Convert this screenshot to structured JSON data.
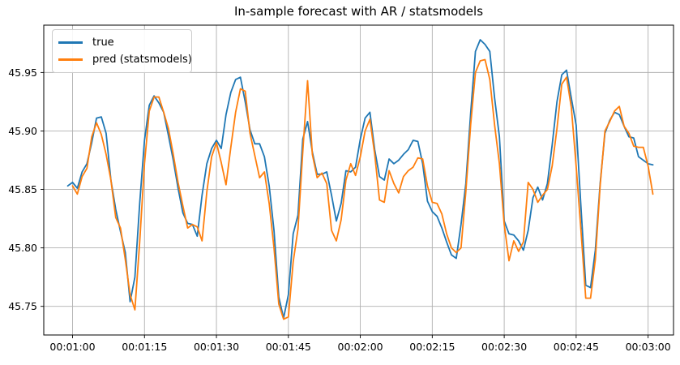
{
  "figure": {
    "title": "In-sample forecast with AR / statsmodels",
    "background_color": "#ffffff",
    "grid_color": "#b0b0b0",
    "spine_color": "#000000"
  },
  "legend": {
    "position": "upper left",
    "items": [
      {
        "label": "true",
        "color": "#1f77b4"
      },
      {
        "label": "pred (statsmodels)",
        "color": "#ff7f0e"
      }
    ]
  },
  "chart_data": {
    "type": "line",
    "title": "In-sample forecast with AR / statsmodels",
    "xlabel": "",
    "ylabel": "",
    "grid": true,
    "legend_position": "upper left",
    "x_axis": {
      "start_time": "00:00:59",
      "interval_seconds": 1,
      "n_points": 123,
      "tick_labels": [
        "00:01:00",
        "00:01:15",
        "00:01:30",
        "00:01:45",
        "00:02:00",
        "00:02:15",
        "00:02:30",
        "00:02:45",
        "00:03:00"
      ],
      "tick_seconds": [
        60,
        75,
        90,
        105,
        120,
        135,
        150,
        165,
        180
      ]
    },
    "y_axis": {
      "tick_labels": [
        "45.75",
        "45.80",
        "45.85",
        "45.90",
        "45.95"
      ],
      "tick_values": [
        45.75,
        45.8,
        45.85,
        45.9,
        45.95
      ],
      "ylim": [
        45.7255,
        45.9905
      ]
    },
    "series": [
      {
        "name": "true",
        "color": "#1f77b4",
        "values": [
          45.853,
          45.856,
          45.851,
          45.865,
          45.872,
          45.89,
          45.911,
          45.912,
          45.898,
          45.858,
          45.833,
          45.814,
          45.796,
          45.754,
          45.775,
          45.838,
          45.892,
          45.922,
          45.93,
          45.924,
          45.916,
          45.896,
          45.875,
          45.851,
          45.83,
          45.821,
          45.82,
          45.81,
          45.845,
          45.872,
          45.885,
          45.892,
          45.885,
          45.914,
          45.933,
          45.944,
          45.946,
          45.925,
          45.901,
          45.889,
          45.889,
          45.878,
          45.853,
          45.815,
          45.758,
          45.74,
          45.76,
          45.812,
          45.828,
          45.893,
          45.908,
          45.882,
          45.863,
          45.863,
          45.865,
          45.845,
          45.823,
          45.838,
          45.866,
          45.865,
          45.869,
          45.893,
          45.911,
          45.916,
          45.884,
          45.861,
          45.858,
          45.876,
          45.872,
          45.875,
          45.88,
          45.884,
          45.892,
          45.891,
          45.872,
          45.84,
          45.831,
          45.827,
          45.817,
          45.805,
          45.794,
          45.791,
          45.82,
          45.855,
          45.915,
          45.968,
          45.978,
          45.974,
          45.968,
          45.928,
          45.895,
          45.823,
          45.812,
          45.811,
          45.806,
          45.798,
          45.815,
          45.843,
          45.852,
          45.841,
          45.855,
          45.888,
          45.925,
          45.948,
          45.952,
          45.928,
          45.905,
          45.835,
          45.768,
          45.766,
          45.798,
          45.855,
          45.898,
          45.909,
          45.916,
          45.914,
          45.904,
          45.895,
          45.894,
          45.878,
          45.875,
          45.872,
          45.871
        ]
      },
      {
        "name": "pred (statsmodels)",
        "color": "#ff7f0e",
        "values": [
          null,
          45.853,
          45.846,
          45.861,
          45.868,
          45.895,
          45.907,
          45.897,
          45.88,
          45.858,
          45.826,
          45.817,
          45.79,
          45.76,
          45.747,
          45.805,
          45.872,
          45.917,
          45.929,
          45.929,
          45.916,
          45.902,
          45.88,
          45.856,
          45.836,
          45.817,
          45.82,
          45.818,
          45.806,
          45.848,
          45.878,
          45.89,
          45.873,
          45.854,
          45.886,
          45.916,
          45.936,
          45.934,
          45.898,
          45.879,
          45.86,
          45.865,
          45.838,
          45.8,
          45.752,
          45.739,
          45.741,
          45.788,
          45.816,
          45.882,
          45.943,
          45.88,
          45.86,
          45.864,
          45.855,
          45.815,
          45.806,
          45.824,
          45.858,
          45.872,
          45.862,
          45.878,
          45.9,
          45.91,
          45.88,
          45.841,
          45.839,
          45.866,
          45.855,
          45.847,
          45.861,
          45.866,
          45.869,
          45.877,
          45.876,
          45.853,
          45.839,
          45.838,
          45.829,
          45.812,
          45.8,
          45.796,
          45.8,
          45.848,
          45.905,
          45.95,
          45.96,
          45.961,
          45.944,
          45.905,
          45.872,
          45.82,
          45.789,
          45.806,
          45.797,
          45.805,
          45.856,
          45.85,
          45.839,
          45.845,
          45.85,
          45.87,
          45.902,
          45.94,
          45.946,
          45.92,
          45.87,
          45.815,
          45.757,
          45.757,
          45.79,
          45.853,
          45.9,
          45.908,
          45.917,
          45.921,
          45.904,
          45.898,
          45.887,
          45.886,
          45.886,
          45.87,
          45.846
        ]
      }
    ]
  }
}
